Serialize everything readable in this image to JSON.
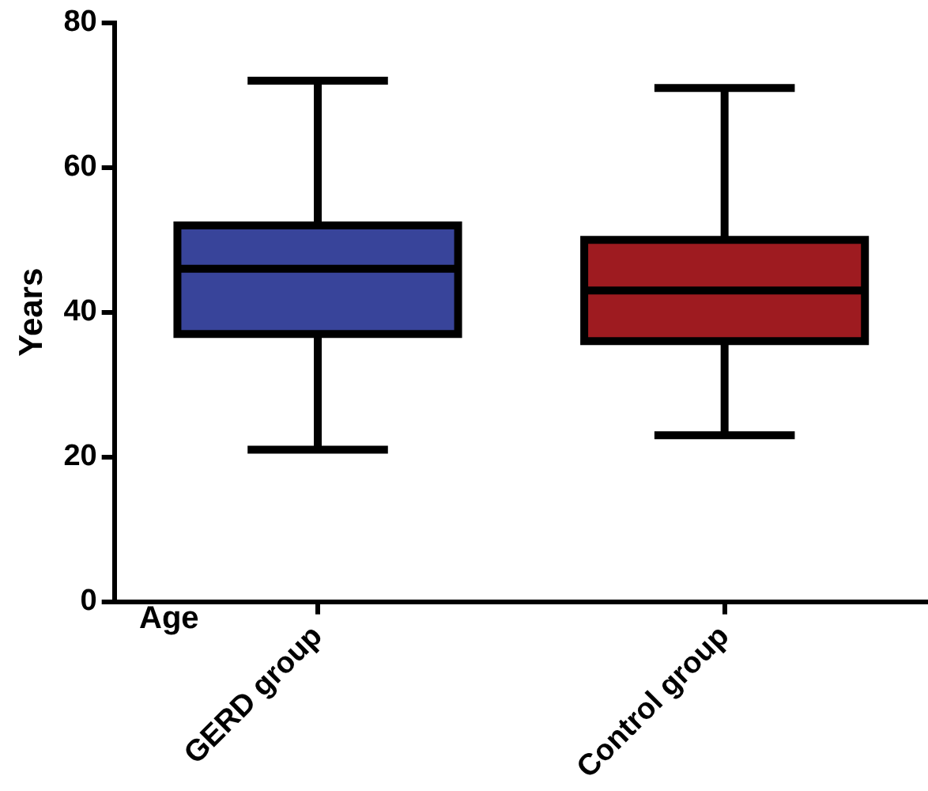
{
  "chart_data": {
    "type": "box",
    "ylabel": "Years",
    "categories": [
      "GERD group",
      "Control group"
    ],
    "boxes": [
      {
        "low": 21,
        "q1": 37,
        "median": 46,
        "q3": 52,
        "high": 72
      },
      {
        "low": 23,
        "q1": 36,
        "median": 43,
        "q3": 50,
        "high": 71
      }
    ],
    "colors": [
      "#38449a",
      "#9e1b20"
    ],
    "ylim": [
      0,
      80
    ],
    "yticks": [
      0,
      20,
      40,
      60,
      80
    ],
    "grid": false,
    "legend": false,
    "annotations": [
      "Age"
    ]
  }
}
